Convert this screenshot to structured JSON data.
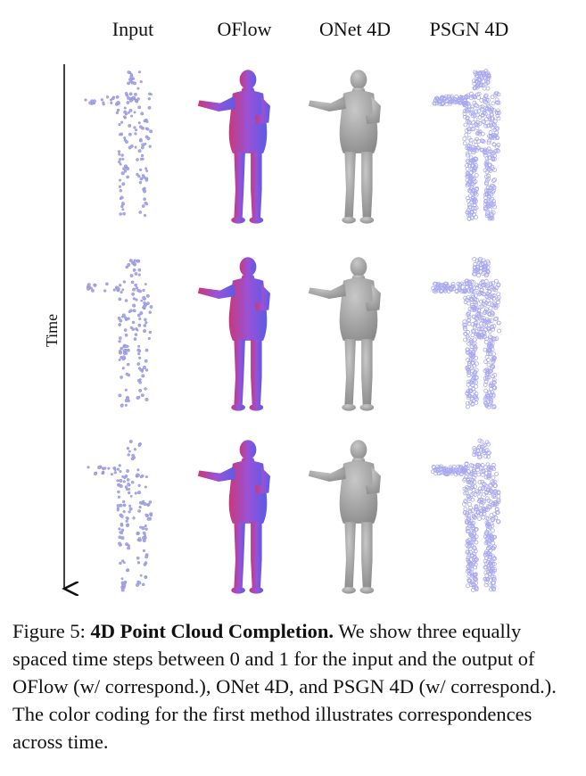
{
  "columns": [
    "Input",
    "OFlow",
    "ONet 4D",
    "PSGN 4D"
  ],
  "time_axis_label": "Time",
  "caption": {
    "figure_number": "Figure 5:",
    "title": "4D Point Cloud Completion.",
    "body": " We show three equally spaced time steps between 0 and 1 for the input and the output of OFlow (w/ correspond.), ONet 4D, and PSGN 4D (w/ correspond.). The color coding for the first method illustrates correspondences across time."
  },
  "colors": {
    "points": "#a8a8ee",
    "mesh_gray": "#a9a9a9",
    "oflow_red": "#e8484a",
    "oflow_violet": "#9a52d6",
    "oflow_blue": "#4a5cf0"
  }
}
